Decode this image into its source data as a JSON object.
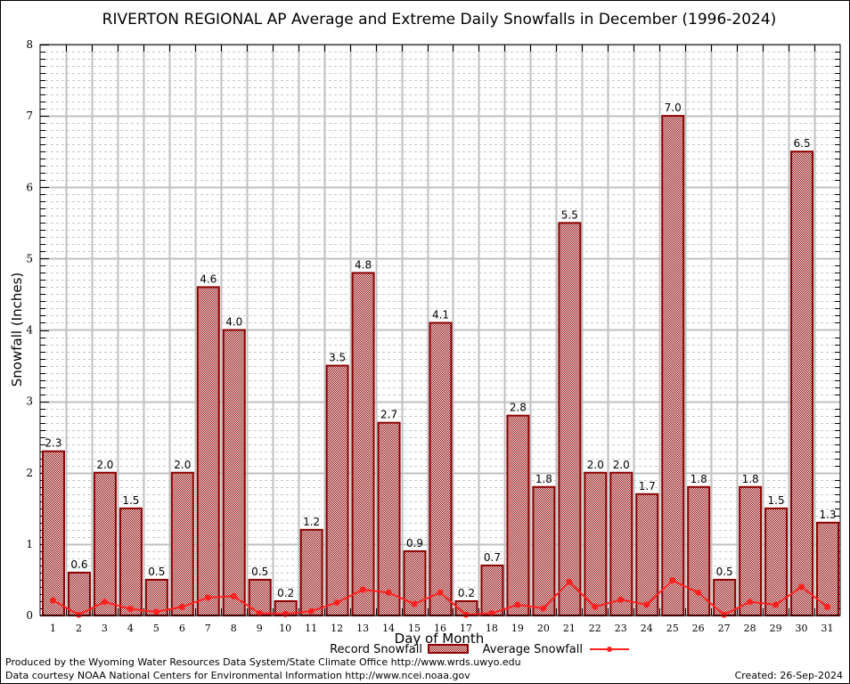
{
  "chart_data": {
    "type": "bar",
    "title": "RIVERTON REGIONAL AP Average and Extreme Daily Snowfalls in December (1996-2024)",
    "xlabel": "Day of Month",
    "ylabel": "Snowfall (Inches)",
    "ylim": [
      0,
      8
    ],
    "yticks": [
      "0",
      "1",
      "2",
      "3",
      "4",
      "5",
      "6",
      "7",
      "8"
    ],
    "grid": true,
    "legend_position": "bottom-center",
    "categories": [
      "1",
      "2",
      "3",
      "4",
      "5",
      "6",
      "7",
      "8",
      "9",
      "10",
      "11",
      "12",
      "13",
      "14",
      "15",
      "16",
      "17",
      "18",
      "19",
      "20",
      "21",
      "22",
      "23",
      "24",
      "25",
      "26",
      "27",
      "28",
      "29",
      "30",
      "31"
    ],
    "series": [
      {
        "name": "Record Snowfall",
        "type": "bar",
        "color": "#8b0000",
        "values": [
          2.3,
          0.6,
          2.0,
          1.5,
          0.5,
          2.0,
          4.6,
          4.0,
          0.5,
          0.2,
          1.2,
          3.5,
          4.8,
          2.7,
          0.9,
          4.1,
          0.2,
          0.7,
          2.8,
          1.8,
          5.5,
          2.0,
          2.0,
          1.7,
          7.0,
          1.8,
          0.5,
          1.8,
          1.5,
          6.5,
          1.3
        ],
        "labels": [
          "2.3",
          "0.6",
          "2.0",
          "1.5",
          "0.5",
          "2.0",
          "4.6",
          "4.0",
          "0.5",
          "0.2",
          "1.2",
          "3.5",
          "4.8",
          "2.7",
          "0.9",
          "4.1",
          "0.2",
          "0.7",
          "2.8",
          "1.8",
          "5.5",
          "2.0",
          "2.0",
          "1.7",
          "7.0",
          "1.8",
          "0.5",
          "1.8",
          "1.5",
          "6.5",
          "1.3"
        ]
      },
      {
        "name": "Average Snowfall",
        "type": "line",
        "color": "#ff2020",
        "values": [
          0.21,
          0.01,
          0.19,
          0.09,
          0.05,
          0.12,
          0.25,
          0.27,
          0.03,
          0.02,
          0.06,
          0.18,
          0.36,
          0.32,
          0.16,
          0.32,
          0.01,
          0.03,
          0.15,
          0.1,
          0.47,
          0.12,
          0.22,
          0.15,
          0.49,
          0.32,
          0.01,
          0.19,
          0.15,
          0.4,
          0.12
        ]
      }
    ]
  },
  "footer": {
    "produced_by": "Produced by the Wyoming Water Resources Data System/State Climate Office http://www.wrds.uwyo.edu",
    "data_courtesy": "Data courtesy NOAA National Centers for Environmental Information http://www.ncei.noaa.gov",
    "created": "Created: 26-Sep-2024"
  }
}
